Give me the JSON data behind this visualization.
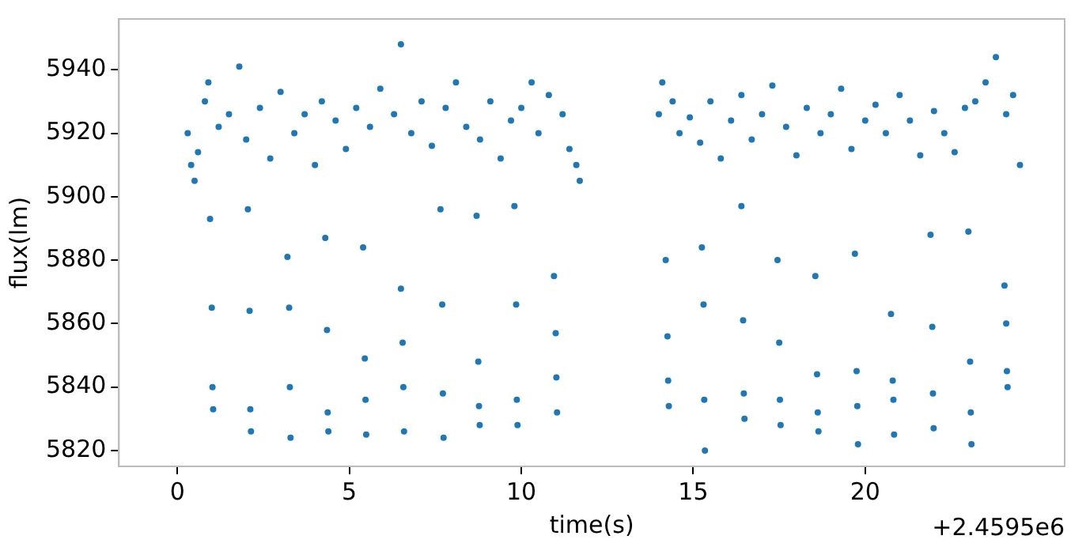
{
  "chart_data": {
    "type": "scatter",
    "xlabel": "time(s)",
    "ylabel": "flux(lm)",
    "annotations": [
      "+2.4595e6"
    ],
    "xlim": [
      -1.7,
      25.8
    ],
    "ylim": [
      5815,
      5956
    ],
    "xticks": [
      0,
      5,
      10,
      15,
      20
    ],
    "yticks": [
      5820,
      5840,
      5860,
      5880,
      5900,
      5920,
      5940
    ],
    "grid": false,
    "marker": "circle",
    "series": [
      {
        "color": "#1f77b4",
        "x": [
          0.3,
          0.4,
          0.5,
          0.6,
          0.8,
          0.9,
          1.2,
          1.5,
          1.8,
          2.0,
          2.4,
          2.7,
          3.0,
          3.4,
          3.7,
          4.0,
          4.2,
          4.6,
          4.9,
          5.2,
          5.6,
          5.9,
          6.3,
          6.5,
          6.8,
          7.1,
          7.4,
          7.8,
          8.1,
          8.4,
          8.8,
          9.1,
          9.4,
          9.7,
          10.0,
          10.3,
          10.5,
          10.8,
          11.2,
          11.4,
          11.6,
          11.7,
          14.0,
          14.1,
          14.4,
          14.6,
          14.9,
          15.2,
          15.5,
          15.8,
          16.1,
          16.4,
          16.7,
          17.0,
          17.3,
          17.7,
          18.0,
          18.3,
          18.7,
          19.0,
          19.3,
          19.6,
          20.0,
          20.3,
          20.6,
          21.0,
          21.3,
          21.6,
          22.0,
          22.3,
          22.6,
          22.9,
          23.2,
          23.5,
          23.8,
          24.1,
          24.3,
          24.5,
          0.95,
          1.0,
          1.02,
          1.04,
          2.05,
          2.1,
          2.12,
          2.14,
          3.2,
          3.25,
          3.27,
          3.29,
          4.3,
          4.35,
          4.37,
          4.39,
          5.4,
          5.45,
          5.47,
          5.49,
          6.5,
          6.55,
          6.57,
          6.59,
          7.65,
          7.7,
          7.72,
          7.74,
          8.7,
          8.75,
          8.77,
          8.79,
          9.8,
          9.85,
          9.87,
          9.89,
          10.95,
          11.0,
          11.02,
          11.04,
          14.2,
          14.25,
          14.27,
          14.29,
          15.25,
          15.3,
          15.32,
          15.34,
          16.4,
          16.45,
          16.47,
          16.49,
          17.45,
          17.5,
          17.52,
          17.54,
          18.55,
          18.6,
          18.62,
          18.64,
          19.7,
          19.75,
          19.77,
          19.79,
          20.75,
          20.8,
          20.82,
          20.84,
          21.9,
          21.95,
          21.97,
          21.99,
          23.0,
          23.05,
          23.07,
          23.09,
          24.05,
          24.1,
          24.12,
          24.14
        ],
        "values": [
          5920,
          5910,
          5905,
          5914,
          5930,
          5936,
          5922,
          5926,
          5941,
          5918,
          5928,
          5912,
          5933,
          5920,
          5926,
          5910,
          5930,
          5924,
          5915,
          5928,
          5922,
          5934,
          5926,
          5948,
          5920,
          5930,
          5916,
          5928,
          5936,
          5922,
          5918,
          5930,
          5912,
          5924,
          5928,
          5936,
          5920,
          5932,
          5926,
          5915,
          5910,
          5905,
          5926,
          5936,
          5930,
          5920,
          5925,
          5917,
          5930,
          5912,
          5924,
          5932,
          5918,
          5926,
          5935,
          5922,
          5913,
          5928,
          5920,
          5926,
          5934,
          5915,
          5924,
          5929,
          5920,
          5932,
          5924,
          5913,
          5927,
          5920,
          5914,
          5928,
          5930,
          5936,
          5944,
          5926,
          5932,
          5910,
          5893,
          5865,
          5840,
          5833,
          5896,
          5864,
          5833,
          5826,
          5881,
          5865,
          5840,
          5824,
          5887,
          5858,
          5832,
          5826,
          5884,
          5849,
          5836,
          5825,
          5871,
          5854,
          5840,
          5826,
          5896,
          5866,
          5838,
          5824,
          5894,
          5848,
          5834,
          5828,
          5897,
          5866,
          5836,
          5828,
          5875,
          5857,
          5843,
          5832,
          5880,
          5856,
          5842,
          5834,
          5884,
          5866,
          5836,
          5820,
          5897,
          5861,
          5838,
          5830,
          5880,
          5854,
          5836,
          5828,
          5875,
          5844,
          5832,
          5826,
          5882,
          5845,
          5834,
          5822,
          5863,
          5842,
          5836,
          5825,
          5888,
          5859,
          5838,
          5827,
          5889,
          5848,
          5832,
          5822,
          5872,
          5860,
          5845,
          5840
        ]
      }
    ]
  }
}
